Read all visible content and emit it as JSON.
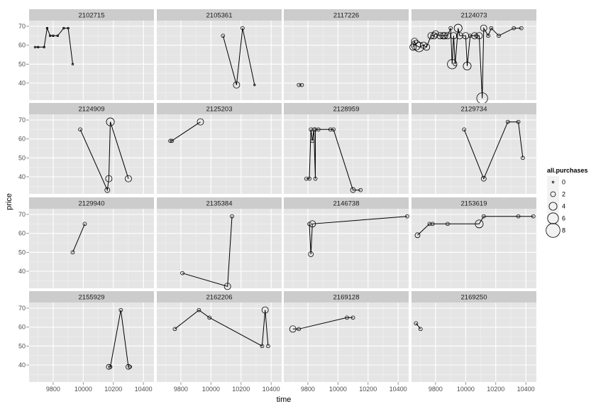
{
  "chart_data": {
    "type": "line",
    "xlabel": "time",
    "ylabel": "price",
    "xlim": [
      9640,
      10470
    ],
    "ylim": [
      31,
      73
    ],
    "x_ticks": [
      9800,
      10000,
      10200,
      10400
    ],
    "y_ticks": [
      40,
      50,
      60,
      70
    ],
    "legend": {
      "title": "all.purchases",
      "entries": [
        0,
        2,
        4,
        6,
        8
      ],
      "placement": "right"
    },
    "colors": {
      "panel": "#e5e5e5",
      "strip": "#cccccc",
      "grid_major": "#ffffff",
      "grid_minor": "#f2f2f2",
      "line": "#000000"
    },
    "panels": [
      {
        "id": "2102715",
        "points": [
          [
            9680,
            59,
            0
          ],
          [
            9700,
            59,
            0
          ],
          [
            9740,
            59,
            0
          ],
          [
            9760,
            69,
            0
          ],
          [
            9780,
            65,
            0
          ],
          [
            9800,
            65,
            0
          ],
          [
            9830,
            65,
            0
          ],
          [
            9870,
            69,
            0
          ],
          [
            9900,
            69,
            0
          ],
          [
            9930,
            50,
            0
          ]
        ]
      },
      {
        "id": "2105361",
        "points": [
          [
            10080,
            65,
            1
          ],
          [
            10170,
            39,
            3
          ],
          [
            10210,
            69,
            1
          ],
          [
            10290,
            39,
            0
          ]
        ]
      },
      {
        "id": "2117226",
        "points": [
          [
            9740,
            39,
            1
          ],
          [
            9760,
            39,
            1
          ]
        ]
      },
      {
        "id": "2124073",
        "points": [
          [
            9650,
            59,
            3
          ],
          [
            9660,
            62,
            3
          ],
          [
            9670,
            60,
            5
          ],
          [
            9690,
            59,
            5
          ],
          [
            9720,
            60,
            3
          ],
          [
            9740,
            59,
            3
          ],
          [
            9770,
            65,
            3
          ],
          [
            9790,
            65,
            3
          ],
          [
            9800,
            66,
            3
          ],
          [
            9830,
            65,
            3
          ],
          [
            9850,
            65,
            3
          ],
          [
            9860,
            65,
            3
          ],
          [
            9880,
            65,
            3
          ],
          [
            9900,
            69,
            1
          ],
          [
            9910,
            50,
            5
          ],
          [
            9920,
            65,
            3
          ],
          [
            9930,
            50,
            1
          ],
          [
            9950,
            69,
            4
          ],
          [
            9960,
            65,
            3
          ],
          [
            10000,
            65,
            3
          ],
          [
            10010,
            49,
            4
          ],
          [
            10030,
            65,
            1
          ],
          [
            10060,
            65,
            3
          ],
          [
            10070,
            65,
            1
          ],
          [
            10090,
            65,
            3
          ],
          [
            10110,
            32,
            6
          ],
          [
            10120,
            69,
            3
          ],
          [
            10150,
            65,
            1
          ],
          [
            10170,
            69,
            1
          ],
          [
            10220,
            65,
            1
          ],
          [
            10320,
            69,
            1
          ],
          [
            10370,
            69,
            1
          ]
        ]
      },
      {
        "id": "2124909",
        "points": [
          [
            9980,
            65,
            1
          ],
          [
            10160,
            33,
            2
          ],
          [
            10170,
            39,
            3
          ],
          [
            10180,
            69,
            4
          ],
          [
            10300,
            39,
            3
          ]
        ]
      },
      {
        "id": "2125203",
        "points": [
          [
            9730,
            59,
            1
          ],
          [
            9740,
            59,
            1
          ],
          [
            9930,
            69,
            3
          ]
        ]
      },
      {
        "id": "2128959",
        "points": [
          [
            9790,
            39,
            1
          ],
          [
            9810,
            39,
            1
          ],
          [
            9820,
            65,
            1
          ],
          [
            9830,
            59,
            1
          ],
          [
            9840,
            65,
            1
          ],
          [
            9850,
            39,
            1
          ],
          [
            9850,
            65,
            1
          ],
          [
            9870,
            65,
            1
          ],
          [
            9950,
            65,
            1
          ],
          [
            9970,
            65,
            1
          ],
          [
            10100,
            33,
            2
          ],
          [
            10150,
            33,
            1
          ]
        ]
      },
      {
        "id": "2129734",
        "points": [
          [
            9990,
            65,
            1
          ],
          [
            10120,
            39,
            2
          ],
          [
            10280,
            69,
            1
          ],
          [
            10350,
            69,
            1
          ],
          [
            10380,
            50,
            1
          ]
        ]
      },
      {
        "id": "2129940",
        "points": [
          [
            9930,
            50,
            1
          ],
          [
            10010,
            65,
            1
          ]
        ]
      },
      {
        "id": "2135384",
        "points": [
          [
            9810,
            39,
            1
          ],
          [
            10110,
            32,
            3
          ],
          [
            10140,
            69,
            1
          ]
        ]
      },
      {
        "id": "2146738",
        "points": [
          [
            9810,
            65,
            1
          ],
          [
            9820,
            49,
            2
          ],
          [
            9830,
            65,
            3
          ],
          [
            10460,
            69,
            1
          ]
        ]
      },
      {
        "id": "2153619",
        "points": [
          [
            9680,
            59,
            2
          ],
          [
            9760,
            65,
            1
          ],
          [
            9780,
            65,
            1
          ],
          [
            9880,
            65,
            1
          ],
          [
            10090,
            65,
            4
          ],
          [
            10120,
            69,
            1
          ],
          [
            10350,
            69,
            1
          ],
          [
            10450,
            69,
            1
          ]
        ]
      },
      {
        "id": "2155929",
        "points": [
          [
            10170,
            39,
            2
          ],
          [
            10180,
            39,
            1
          ],
          [
            10250,
            69,
            1
          ],
          [
            10300,
            39,
            2
          ],
          [
            10310,
            39,
            1
          ]
        ]
      },
      {
        "id": "2162206",
        "points": [
          [
            9760,
            59,
            1
          ],
          [
            9920,
            69,
            1
          ],
          [
            9990,
            65,
            1
          ],
          [
            10340,
            50,
            1
          ],
          [
            10360,
            69,
            3
          ],
          [
            10380,
            50,
            1
          ]
        ]
      },
      {
        "id": "2169128",
        "points": [
          [
            9700,
            59,
            3
          ],
          [
            9740,
            59,
            1
          ],
          [
            10060,
            65,
            1
          ],
          [
            10100,
            65,
            1
          ]
        ]
      },
      {
        "id": "2169250",
        "points": [
          [
            9670,
            62,
            1
          ],
          [
            9700,
            59,
            1
          ]
        ]
      }
    ]
  }
}
